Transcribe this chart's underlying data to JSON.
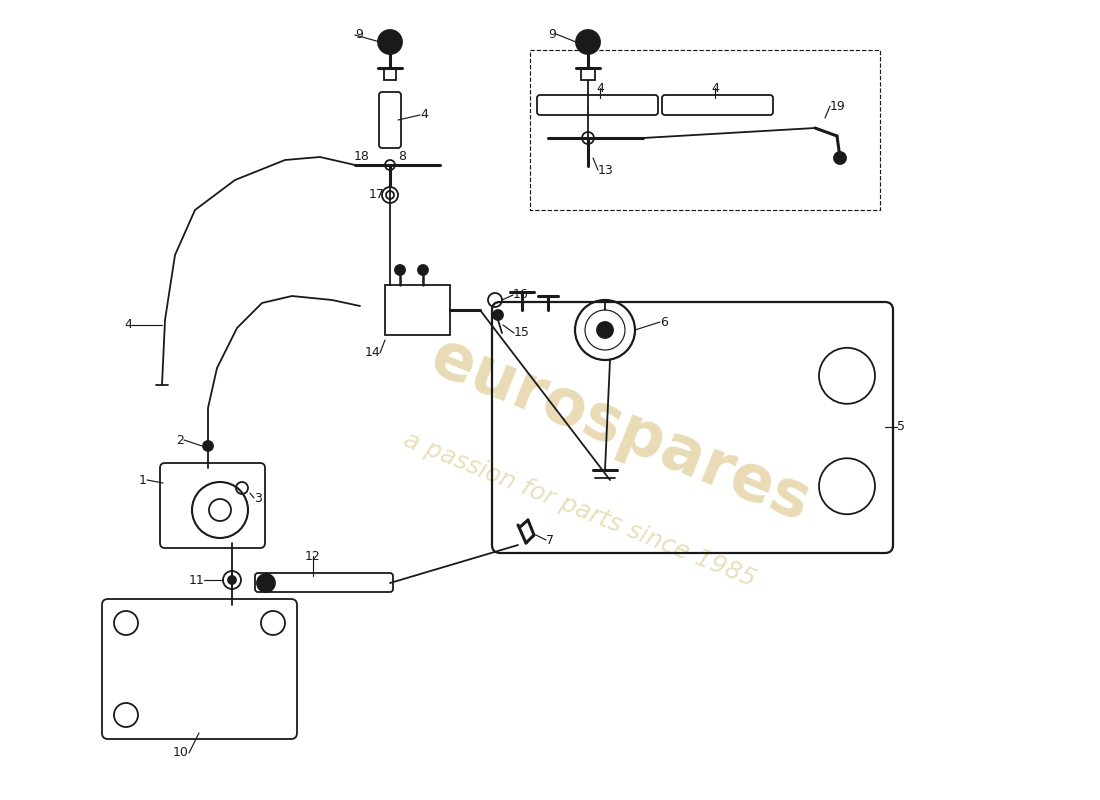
{
  "bg": "#ffffff",
  "lc": "#1a1a1a",
  "lw": 1.3,
  "lw_thick": 2.2,
  "lw_thin": 0.85,
  "fontsize": 9,
  "wm1_color": "#c8aa50",
  "wm2_color": "#c8aa50",
  "wm1": "eurospares",
  "wm2": "a passion for parts since 1985",
  "fig_w": 11.0,
  "fig_h": 8.0,
  "dpi": 100,
  "xmin": 0,
  "xmax": 1100,
  "ymin": 0,
  "ymax": 800
}
